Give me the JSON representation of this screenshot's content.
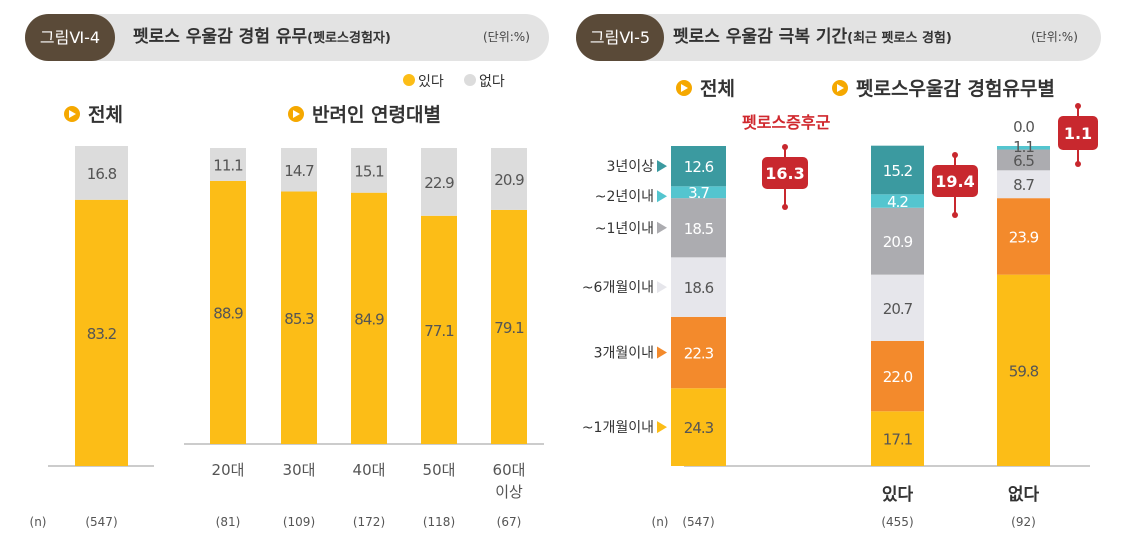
{
  "left": {
    "tag": "그림Ⅵ-4",
    "title": "펫로스 우울감 경험 유무",
    "title_sub": "(펫로스경험자)",
    "unit": "(단위:%)",
    "legend": [
      {
        "label": "있다",
        "color": "#fcbd17"
      },
      {
        "label": "없다",
        "color": "#dcdcdc"
      }
    ],
    "section_total": "전체",
    "section_age": "반려인 연령대별",
    "n_label": "(n)"
  },
  "right": {
    "tag": "그림Ⅵ-5",
    "title": "펫로스 우울감 극복 기간",
    "title_sub": "(최근 펫로스 경험)",
    "unit": "(단위:%)",
    "section_total": "전체",
    "section_group": "펫로스우울감 경험유무별",
    "syndrome_label": "펫로스증후군",
    "n_label": "(n)"
  },
  "chart_data": [
    {
      "type": "bar",
      "stacked": true,
      "categories": [
        "전체",
        "20대",
        "30대",
        "40대",
        "50대",
        "60대 이상"
      ],
      "n": [
        "(547)",
        "(81)",
        "(109)",
        "(172)",
        "(118)",
        "(67)"
      ],
      "series": [
        {
          "name": "있다",
          "color": "#fcbd17",
          "values": [
            83.2,
            88.9,
            85.3,
            84.9,
            77.1,
            79.1
          ]
        },
        {
          "name": "없다",
          "color": "#dcdcdc",
          "values": [
            16.8,
            11.1,
            14.7,
            15.1,
            22.9,
            20.9
          ]
        }
      ],
      "ylim": [
        0,
        100
      ]
    },
    {
      "type": "bar",
      "stacked": true,
      "categories": [
        "전체",
        "있다",
        "없다"
      ],
      "n": [
        "(547)",
        "(455)",
        "(92)"
      ],
      "series": [
        {
          "name": "~1개월이내",
          "color": "#fcbd17",
          "values": [
            24.3,
            17.1,
            59.8
          ]
        },
        {
          "name": "3개월이내",
          "color": "#f38a2c",
          "values": [
            22.3,
            22.0,
            23.9
          ]
        },
        {
          "name": "~6개월이내",
          "color": "#e6e6eb",
          "values": [
            18.6,
            20.7,
            8.7
          ]
        },
        {
          "name": "~1년이내",
          "color": "#acacb0",
          "values": [
            18.5,
            20.9,
            6.5
          ]
        },
        {
          "name": "~2년이내",
          "color": "#54c5cf",
          "values": [
            3.7,
            4.2,
            1.1
          ]
        },
        {
          "name": "3년이상",
          "color": "#3b9aa0",
          "values": [
            12.6,
            15.2,
            0.0
          ]
        }
      ],
      "syndrome_values": [
        "16.3",
        "19.4",
        "1.1"
      ],
      "ylim": [
        0,
        100
      ]
    }
  ]
}
